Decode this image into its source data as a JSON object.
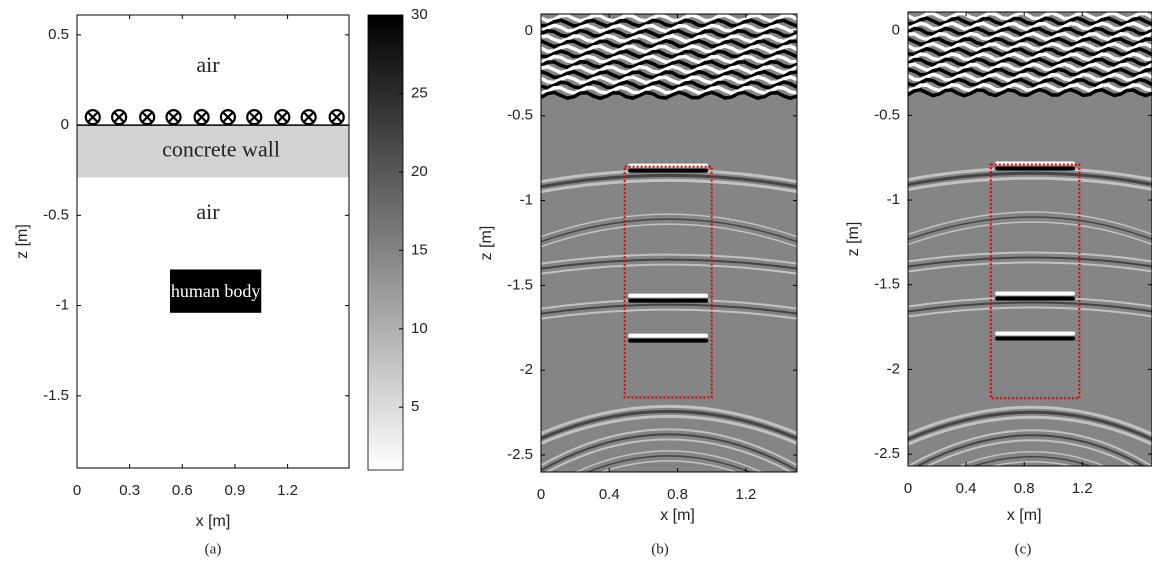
{
  "chart_data": [
    {
      "type": "model",
      "caption": "(a)",
      "xlabel": "x [m]",
      "ylabel": "z [m]",
      "xlim": [
        0,
        1.55
      ],
      "ylim": [
        -1.9,
        0.61
      ],
      "xticks": [
        0,
        0.3,
        0.6,
        0.9,
        1.2
      ],
      "yticks": [
        0.5,
        0,
        -0.5,
        -1,
        -1.5
      ],
      "labels": [
        "air",
        "concrete wall",
        "air",
        "human body"
      ],
      "wall": {
        "zlim": [
          -0.29,
          0
        ],
        "color": "#d3d3d3"
      },
      "body": {
        "xlim": [
          0.53,
          1.05
        ],
        "zlim": [
          -1.04,
          -0.8
        ],
        "color": "#000000"
      },
      "antenna_x": [
        0.09,
        0.24,
        0.4,
        0.55,
        0.71,
        0.86,
        1.01,
        1.17,
        1.32,
        1.48
      ],
      "antenna_z": 0.044,
      "colorbar": {
        "clim": [
          1,
          30
        ],
        "ticks": [
          5,
          10,
          15,
          20,
          25,
          30
        ]
      }
    },
    {
      "type": "image",
      "caption": "(b)",
      "xlabel": "x [m]",
      "ylabel": "z [m]",
      "xlim": [
        0,
        1.5
      ],
      "ylim": [
        -2.6,
        0.1
      ],
      "xticks": [
        0,
        0.4,
        0.8,
        1.2
      ],
      "yticks": [
        0,
        -0.5,
        -1,
        -1.5,
        -2,
        -2.5
      ],
      "target": {
        "xlim": [
          0.49,
          1.0
        ],
        "zlim": [
          -2.16,
          -0.8
        ],
        "color": "#e00000"
      }
    },
    {
      "type": "image",
      "caption": "(c)",
      "xlabel": "x [m]",
      "ylabel": "z [m]",
      "xlim": [
        0,
        1.68
      ],
      "ylim": [
        -2.57,
        0.11
      ],
      "xticks": [
        0,
        0.4,
        0.8,
        1.2
      ],
      "yticks": [
        0,
        -0.5,
        -1,
        -1.5,
        -2,
        -2.5
      ],
      "target": {
        "xlim": [
          0.57,
          1.18
        ],
        "zlim": [
          -2.17,
          -0.79
        ],
        "color": "#e00000"
      }
    }
  ]
}
